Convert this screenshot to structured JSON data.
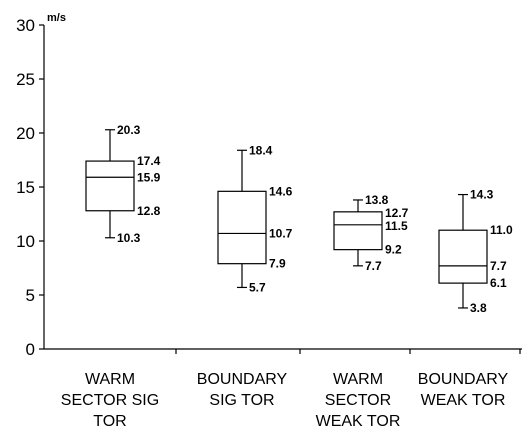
{
  "chart_data": {
    "type": "boxplot",
    "y_unit": "m/s",
    "ylim": [
      0,
      30
    ],
    "yticks": [
      0,
      5,
      10,
      15,
      20,
      25,
      30
    ],
    "grid": false,
    "categories": [
      [
        "WARM",
        "SECTOR SIG",
        "TOR"
      ],
      [
        "BOUNDARY",
        "SIG TOR"
      ],
      [
        "WARM",
        "SECTOR",
        "WEAK TOR"
      ],
      [
        "BOUNDARY",
        "WEAK TOR"
      ]
    ],
    "boxes": [
      {
        "max": 20.3,
        "q3": 17.4,
        "median": 15.9,
        "q1": 12.8,
        "min": 10.3,
        "labels": [
          "20.3",
          "17.4",
          "15.9",
          "12.8",
          "10.3"
        ]
      },
      {
        "max": 18.4,
        "q3": 14.6,
        "median": 10.7,
        "q1": 7.9,
        "min": 5.7,
        "labels": [
          "18.4",
          "14.6",
          "10.7",
          "7.9",
          "5.7"
        ]
      },
      {
        "max": 13.8,
        "q3": 12.7,
        "median": 11.5,
        "q1": 9.2,
        "min": 7.7,
        "labels": [
          "13.8",
          "12.7",
          "11.5",
          "9.2",
          "7.7"
        ]
      },
      {
        "max": 14.3,
        "q3": 11.0,
        "median": 7.7,
        "q1": 6.1,
        "min": 3.8,
        "labels": [
          "14.3",
          "11.0",
          "7.7",
          "6.1",
          "3.8"
        ]
      }
    ]
  }
}
